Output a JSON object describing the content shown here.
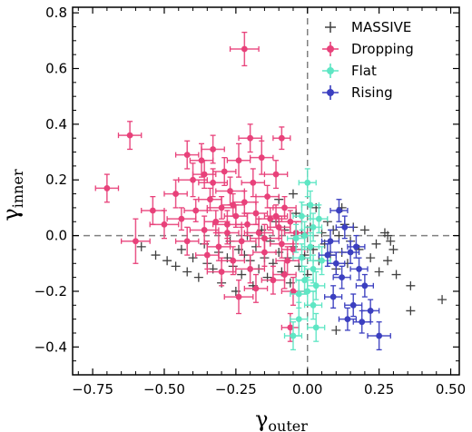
{
  "chart_data": {
    "type": "scatter",
    "title": "",
    "xlabel": "γ",
    "xlabel_sub": "outer",
    "ylabel": "γ",
    "ylabel_sub": "inner",
    "xlim": [
      -0.82,
      0.53
    ],
    "ylim": [
      -0.5,
      0.82
    ],
    "xticks": [
      -0.75,
      -0.5,
      -0.25,
      0.0,
      0.25,
      0.5
    ],
    "xtick_labels": [
      "−0.75",
      "−0.50",
      "−0.25",
      "0.00",
      "0.25",
      "0.50"
    ],
    "yticks": [
      -0.4,
      -0.2,
      0.0,
      0.2,
      0.4,
      0.6,
      0.8
    ],
    "ytick_labels": [
      "−0.4",
      "−0.2",
      "0.0",
      "0.2",
      "0.4",
      "0.6",
      "0.8"
    ],
    "reference_lines": {
      "x": 0.0,
      "y": 0.0,
      "style": "dashed",
      "color": "#808080"
    },
    "grid": false,
    "legend_position": "top-right",
    "legend": [
      {
        "label": "MASSIVE",
        "color": "#404040",
        "marker": "plus"
      },
      {
        "label": "Dropping",
        "color": "#e8417a",
        "marker": "circle"
      },
      {
        "label": "Flat",
        "color": "#5ee6c4",
        "marker": "circle"
      },
      {
        "label": "Rising",
        "color": "#3b3fc0",
        "marker": "circle"
      }
    ],
    "series": [
      {
        "name": "MASSIVE",
        "color": "#404040",
        "marker": "plus",
        "points": [
          [
            -0.58,
            -0.04
          ],
          [
            -0.53,
            -0.07
          ],
          [
            -0.49,
            -0.09
          ],
          [
            -0.46,
            -0.11
          ],
          [
            -0.44,
            -0.05
          ],
          [
            -0.42,
            -0.13
          ],
          [
            -0.4,
            -0.08
          ],
          [
            -0.38,
            -0.15
          ],
          [
            -0.36,
            -0.03
          ],
          [
            -0.35,
            -0.1
          ],
          [
            -0.33,
            -0.12
          ],
          [
            -0.31,
            -0.06
          ],
          [
            -0.3,
            -0.17
          ],
          [
            -0.28,
            -0.08
          ],
          [
            -0.27,
            -0.02
          ],
          [
            -0.26,
            -0.11
          ],
          [
            -0.24,
            -0.05
          ],
          [
            -0.23,
            -0.14
          ],
          [
            -0.22,
            -0.07
          ],
          [
            -0.21,
            0.0
          ],
          [
            -0.2,
            -0.09
          ],
          [
            -0.19,
            -0.18
          ],
          [
            -0.18,
            -0.04
          ],
          [
            -0.17,
            -0.12
          ],
          [
            -0.16,
            0.02
          ],
          [
            -0.15,
            -0.08
          ],
          [
            -0.14,
            -0.15
          ],
          [
            -0.13,
            -0.02
          ],
          [
            -0.12,
            -0.1
          ],
          [
            -0.11,
            0.05
          ],
          [
            -0.1,
            -0.06
          ],
          [
            -0.09,
            -0.13
          ],
          [
            -0.08,
            0.02
          ],
          [
            -0.07,
            -0.08
          ],
          [
            -0.06,
            -0.17
          ],
          [
            -0.05,
            -0.04
          ],
          [
            -0.04,
            0.08
          ],
          [
            -0.03,
            -0.11
          ],
          [
            -0.02,
            0.01
          ],
          [
            -0.01,
            -0.07
          ],
          [
            0.0,
            -0.14
          ],
          [
            0.01,
            0.03
          ],
          [
            0.02,
            -0.05
          ],
          [
            0.03,
            0.1
          ],
          [
            0.04,
            -0.09
          ],
          [
            0.05,
            0.01
          ],
          [
            0.06,
            -0.03
          ],
          [
            0.07,
            0.05
          ],
          [
            0.08,
            -0.07
          ],
          [
            0.09,
            0.02
          ],
          [
            0.1,
            -0.12
          ],
          [
            0.11,
            0.0
          ],
          [
            0.12,
            -0.06
          ],
          [
            0.13,
            0.04
          ],
          [
            0.14,
            -0.1
          ],
          [
            0.15,
            -0.02
          ],
          [
            0.16,
            0.03
          ],
          [
            0.18,
            -0.05
          ],
          [
            0.2,
            0.02
          ],
          [
            0.22,
            -0.08
          ],
          [
            0.24,
            -0.03
          ],
          [
            0.25,
            -0.13
          ],
          [
            0.27,
            0.01
          ],
          [
            0.28,
            -0.09
          ],
          [
            0.29,
            -0.02
          ],
          [
            0.3,
            -0.05
          ],
          [
            0.31,
            -0.14
          ],
          [
            0.36,
            -0.18
          ],
          [
            0.36,
            -0.27
          ],
          [
            0.47,
            -0.23
          ],
          [
            -0.1,
            0.13
          ],
          [
            -0.05,
            0.15
          ],
          [
            0.12,
            0.1
          ],
          [
            -0.25,
            -0.2
          ],
          [
            0.1,
            -0.34
          ],
          [
            0.28,
            0.0
          ]
        ]
      },
      {
        "name": "Dropping",
        "color": "#e8417a",
        "marker": "circle",
        "points": [
          [
            -0.22,
            0.67,
            0.05,
            0.06
          ],
          [
            -0.7,
            0.17,
            0.04,
            0.05
          ],
          [
            -0.62,
            0.36,
            0.04,
            0.05
          ],
          [
            -0.6,
            -0.02,
            0.05,
            0.08
          ],
          [
            -0.54,
            0.09,
            0.04,
            0.05
          ],
          [
            -0.5,
            0.04,
            0.05,
            0.05
          ],
          [
            -0.46,
            0.15,
            0.04,
            0.05
          ],
          [
            -0.44,
            0.06,
            0.05,
            0.04
          ],
          [
            -0.42,
            -0.02,
            0.04,
            0.05
          ],
          [
            -0.4,
            0.2,
            0.05,
            0.06
          ],
          [
            -0.39,
            0.09,
            0.04,
            0.04
          ],
          [
            -0.37,
            0.27,
            0.04,
            0.06
          ],
          [
            -0.36,
            0.02,
            0.05,
            0.05
          ],
          [
            -0.35,
            -0.07,
            0.04,
            0.05
          ],
          [
            -0.34,
            0.13,
            0.04,
            0.04
          ],
          [
            -0.33,
            0.19,
            0.05,
            0.05
          ],
          [
            -0.32,
            0.05,
            0.04,
            0.04
          ],
          [
            -0.31,
            -0.04,
            0.04,
            0.05
          ],
          [
            -0.3,
            0.1,
            0.05,
            0.04
          ],
          [
            -0.29,
            0.23,
            0.04,
            0.05
          ],
          [
            -0.28,
            0.01,
            0.04,
            0.04
          ],
          [
            -0.27,
            0.16,
            0.05,
            0.05
          ],
          [
            -0.26,
            -0.09,
            0.04,
            0.05
          ],
          [
            -0.25,
            0.07,
            0.04,
            0.04
          ],
          [
            -0.24,
            0.27,
            0.04,
            0.06
          ],
          [
            -0.23,
            -0.02,
            0.05,
            0.05
          ],
          [
            -0.22,
            0.12,
            0.04,
            0.04
          ],
          [
            -0.21,
            0.04,
            0.04,
            0.04
          ],
          [
            -0.2,
            -0.12,
            0.05,
            0.05
          ],
          [
            -0.19,
            0.19,
            0.04,
            0.05
          ],
          [
            -0.18,
            0.08,
            0.04,
            0.04
          ],
          [
            -0.17,
            0.01,
            0.05,
            0.05
          ],
          [
            -0.16,
            0.28,
            0.04,
            0.06
          ],
          [
            -0.15,
            -0.06,
            0.04,
            0.05
          ],
          [
            -0.14,
            0.14,
            0.04,
            0.04
          ],
          [
            -0.13,
            0.06,
            0.04,
            0.04
          ],
          [
            -0.12,
            -0.16,
            0.04,
            0.05
          ],
          [
            -0.11,
            0.22,
            0.04,
            0.05
          ],
          [
            -0.1,
            0.03,
            0.04,
            0.04
          ],
          [
            -0.09,
            0.35,
            0.03,
            0.04
          ],
          [
            -0.09,
            -0.03,
            0.04,
            0.05
          ],
          [
            -0.08,
            0.1,
            0.04,
            0.04
          ],
          [
            -0.07,
            -0.09,
            0.04,
            0.05
          ],
          [
            -0.06,
            0.05,
            0.04,
            0.04
          ],
          [
            -0.05,
            -0.2,
            0.04,
            0.05
          ],
          [
            -0.04,
            0.01,
            0.04,
            0.04
          ],
          [
            -0.06,
            -0.33,
            0.03,
            0.05
          ],
          [
            -0.3,
            -0.13,
            0.05,
            0.05
          ],
          [
            -0.24,
            -0.22,
            0.05,
            0.06
          ],
          [
            -0.33,
            0.31,
            0.04,
            0.05
          ],
          [
            -0.2,
            0.35,
            0.04,
            0.05
          ],
          [
            -0.42,
            0.29,
            0.04,
            0.05
          ],
          [
            -0.15,
            -0.01,
            0.05,
            0.05
          ],
          [
            -0.28,
            0.04,
            0.05,
            0.05
          ],
          [
            -0.11,
            0.07,
            0.04,
            0.04
          ],
          [
            -0.05,
            -0.05,
            0.04,
            0.04
          ],
          [
            -0.08,
            -0.14,
            0.04,
            0.05
          ],
          [
            -0.36,
            0.22,
            0.04,
            0.05
          ],
          [
            -0.18,
            -0.19,
            0.04,
            0.05
          ],
          [
            -0.26,
            0.11,
            0.04,
            0.04
          ]
        ]
      },
      {
        "name": "Flat",
        "color": "#5ee6c4",
        "marker": "circle",
        "points": [
          [
            0.0,
            0.19,
            0.03,
            0.05
          ],
          [
            0.01,
            0.11,
            0.03,
            0.05
          ],
          [
            -0.02,
            0.07,
            0.03,
            0.05
          ],
          [
            0.02,
            0.03,
            0.03,
            0.05
          ],
          [
            -0.01,
            0.0,
            0.03,
            0.05
          ],
          [
            0.01,
            -0.04,
            0.03,
            0.05
          ],
          [
            -0.02,
            -0.08,
            0.03,
            0.05
          ],
          [
            0.02,
            -0.12,
            0.03,
            0.05
          ],
          [
            -0.01,
            -0.16,
            0.03,
            0.05
          ],
          [
            0.0,
            -0.2,
            0.03,
            0.05
          ],
          [
            0.02,
            -0.25,
            0.03,
            0.05
          ],
          [
            -0.03,
            -0.3,
            0.03,
            0.06
          ],
          [
            -0.05,
            -0.36,
            0.03,
            0.05
          ],
          [
            0.03,
            -0.18,
            0.03,
            0.05
          ],
          [
            -0.04,
            -0.01,
            0.03,
            0.05
          ],
          [
            0.04,
            0.06,
            0.03,
            0.05
          ],
          [
            -0.03,
            -0.21,
            0.03,
            0.05
          ],
          [
            0.05,
            -0.09,
            0.03,
            0.05
          ],
          [
            0.03,
            -0.33,
            0.03,
            0.05
          ]
        ]
      },
      {
        "name": "Rising",
        "color": "#3b3fc0",
        "marker": "circle",
        "points": [
          [
            0.11,
            0.09,
            0.03,
            0.04
          ],
          [
            0.13,
            0.03,
            0.03,
            0.04
          ],
          [
            0.08,
            -0.02,
            0.03,
            0.04
          ],
          [
            0.15,
            -0.06,
            0.03,
            0.04
          ],
          [
            0.1,
            -0.1,
            0.03,
            0.04
          ],
          [
            0.18,
            -0.12,
            0.03,
            0.04
          ],
          [
            0.12,
            -0.15,
            0.03,
            0.04
          ],
          [
            0.2,
            -0.18,
            0.03,
            0.04
          ],
          [
            0.09,
            -0.22,
            0.03,
            0.04
          ],
          [
            0.16,
            -0.25,
            0.03,
            0.04
          ],
          [
            0.22,
            -0.27,
            0.03,
            0.04
          ],
          [
            0.14,
            -0.3,
            0.03,
            0.04
          ],
          [
            0.19,
            -0.31,
            0.03,
            0.04
          ],
          [
            0.25,
            -0.36,
            0.04,
            0.05
          ],
          [
            0.07,
            -0.07,
            0.03,
            0.04
          ],
          [
            0.17,
            -0.04,
            0.03,
            0.04
          ]
        ]
      }
    ]
  }
}
